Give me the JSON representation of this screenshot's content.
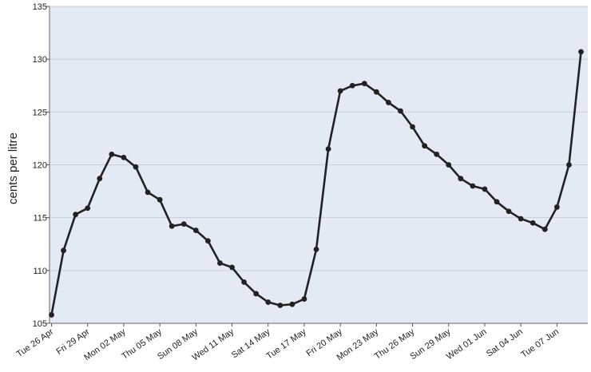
{
  "chart_data": {
    "type": "line",
    "title": "",
    "xlabel": "",
    "ylabel": "cents per litre",
    "ylim": [
      105,
      135
    ],
    "yticks": [
      105,
      110,
      115,
      120,
      125,
      130,
      135
    ],
    "grid": true,
    "legend": "none",
    "colors": {
      "plot_background": "#e4eaf4",
      "grid": "#c9cfd9",
      "line": "#222222",
      "marker": "#222222"
    },
    "xticks": [
      {
        "index": 0,
        "label": "Tue 26 Apr"
      },
      {
        "index": 3,
        "label": "Fri 29 Apr"
      },
      {
        "index": 6,
        "label": "Mon 02 May"
      },
      {
        "index": 9,
        "label": "Thu 05 May"
      },
      {
        "index": 12,
        "label": "Sun 08 May"
      },
      {
        "index": 15,
        "label": "Wed 11 May"
      },
      {
        "index": 18,
        "label": "Sat 14 May"
      },
      {
        "index": 21,
        "label": "Tue 17 May"
      },
      {
        "index": 24,
        "label": "Fri 20 May"
      },
      {
        "index": 27,
        "label": "Mon 23 May"
      },
      {
        "index": 30,
        "label": "Thu 26 May"
      },
      {
        "index": 33,
        "label": "Sun 29 May"
      },
      {
        "index": 36,
        "label": "Wed 01 Jun"
      },
      {
        "index": 39,
        "label": "Sat 04 Jun"
      },
      {
        "index": 42,
        "label": "Tue 07 Jun"
      }
    ],
    "series": [
      {
        "values": [
          105.8,
          111.9,
          115.3,
          115.9,
          118.7,
          121.0,
          120.7,
          119.8,
          117.4,
          116.7,
          114.2,
          114.4,
          113.8,
          112.8,
          110.7,
          110.3,
          108.9,
          107.8,
          107.0,
          106.7,
          106.8,
          107.3,
          112.0,
          121.5,
          127.0,
          127.5,
          127.7,
          126.9,
          125.9,
          125.1,
          123.6,
          121.8,
          121.0,
          120.0,
          118.7,
          118.0,
          117.7,
          116.5,
          115.6,
          114.9,
          114.5,
          113.9,
          116.0,
          120.0,
          130.7
        ]
      }
    ]
  }
}
